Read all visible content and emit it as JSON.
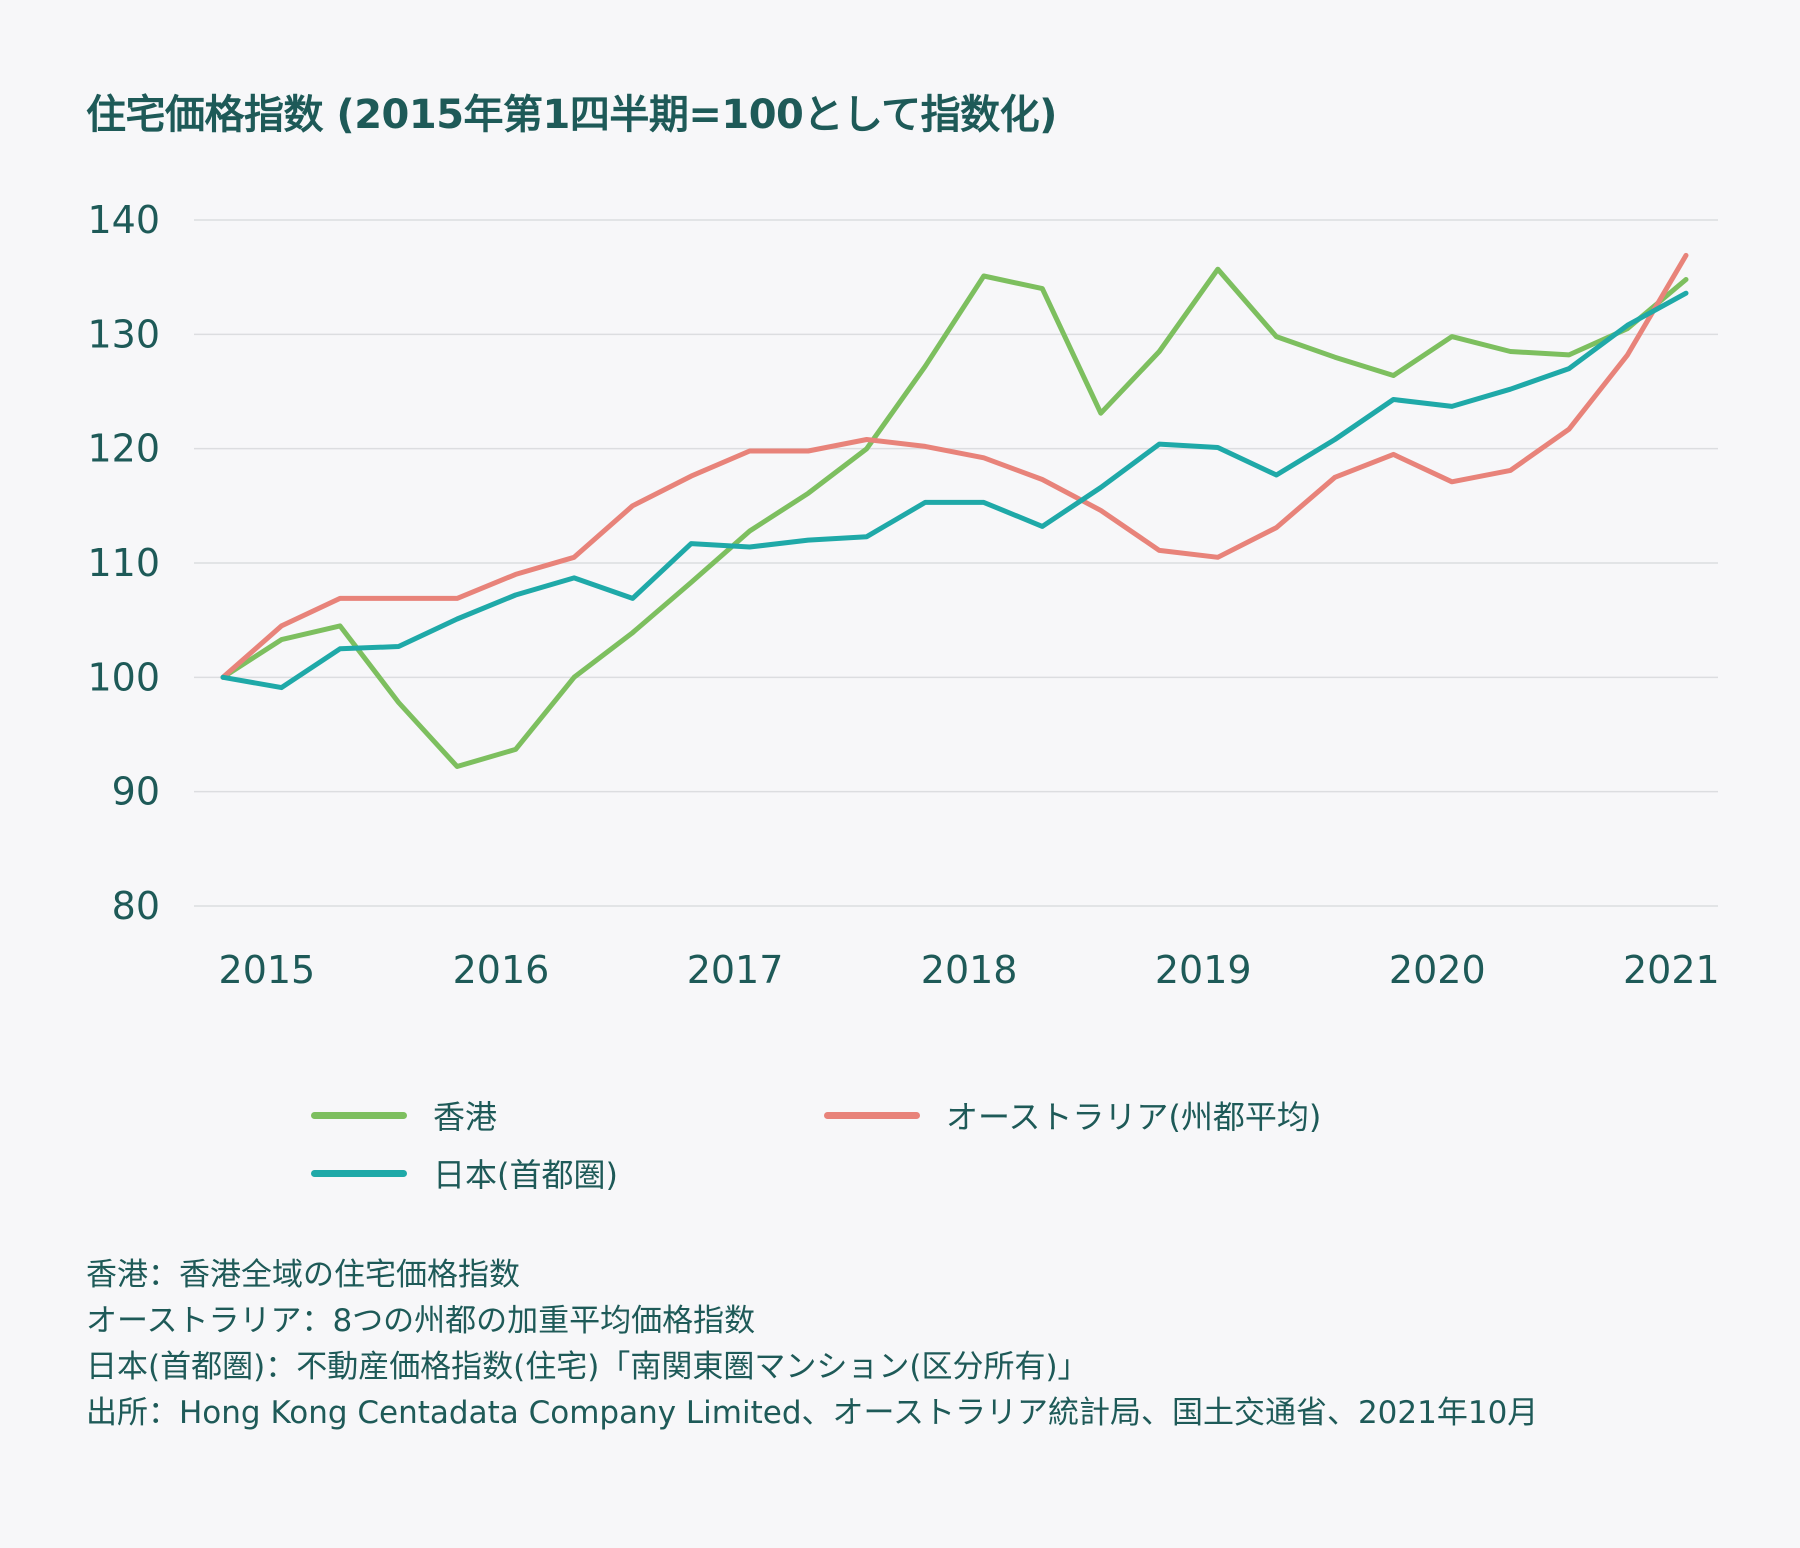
{
  "colors": {
    "hongkong": "#7dbf5f",
    "australia": "#e8837a",
    "japan": "#1fa9a8",
    "text": "#1e5a58",
    "grid": "#dcdde0"
  },
  "chart_data": {
    "type": "line",
    "title": "住宅価格指数 (2015年第1四半期=100として指数化)",
    "x": [
      "2015Q1",
      "2015Q2",
      "2015Q3",
      "2015Q4",
      "2016Q1",
      "2016Q2",
      "2016Q3",
      "2016Q4",
      "2017Q1",
      "2017Q2",
      "2017Q3",
      "2017Q4",
      "2018Q1",
      "2018Q2",
      "2018Q3",
      "2018Q4",
      "2019Q1",
      "2019Q2",
      "2019Q3",
      "2019Q4",
      "2020Q1",
      "2020Q2",
      "2020Q3",
      "2020Q4",
      "2021Q1",
      "2021Q2"
    ],
    "x_tick_labels": [
      "2015",
      "2016",
      "2017",
      "2018",
      "2019",
      "2020",
      "2021"
    ],
    "yticks": [
      80,
      90,
      100,
      110,
      120,
      130,
      140
    ],
    "ylim": [
      80,
      140
    ],
    "grid": true,
    "legend_placement": "bottom",
    "series": [
      {
        "name": "香港",
        "key": "hongkong",
        "values": [
          100,
          103.3,
          104.5,
          97.8,
          92.2,
          93.7,
          100,
          103.9,
          108.3,
          112.8,
          116.1,
          120,
          127.2,
          135.1,
          134,
          123.1,
          128.5,
          135.7,
          129.8,
          128,
          126.4,
          129.8,
          128.5,
          128.2,
          130.5,
          134.8
        ]
      },
      {
        "name": "オーストラリア(州都平均)",
        "key": "australia",
        "values": [
          100,
          104.5,
          106.9,
          106.9,
          106.9,
          109,
          110.5,
          115,
          117.6,
          119.8,
          119.8,
          120.8,
          120.2,
          119.2,
          117.3,
          114.6,
          111.1,
          110.5,
          113.1,
          117.5,
          119.5,
          117.1,
          118.1,
          121.7,
          128.2,
          136.9
        ]
      },
      {
        "name": "日本(首都圏)",
        "key": "japan",
        "values": [
          100,
          99.1,
          102.5,
          102.7,
          105.1,
          107.2,
          108.7,
          106.9,
          111.7,
          111.4,
          112,
          112.3,
          115.3,
          115.3,
          113.2,
          116.6,
          120.4,
          120.1,
          117.7,
          120.8,
          124.3,
          123.7,
          125.2,
          127,
          130.8,
          133.6
        ]
      }
    ]
  },
  "legend": [
    {
      "label": "香港",
      "key": "hongkong"
    },
    {
      "label": "オーストラリア(州都平均)",
      "key": "australia"
    },
    {
      "label": "日本(首都圏)",
      "key": "japan"
    }
  ],
  "notes": [
    "香港：香港全域の住宅価格指数",
    "オーストラリア：8つの州都の加重平均価格指数",
    "日本(首都圏)：不動産価格指数(住宅)「南関東圏マンション(区分所有)」",
    "出所：Hong Kong Centadata Company Limited、オーストラリア統計局、国土交通省、2021年10月"
  ]
}
